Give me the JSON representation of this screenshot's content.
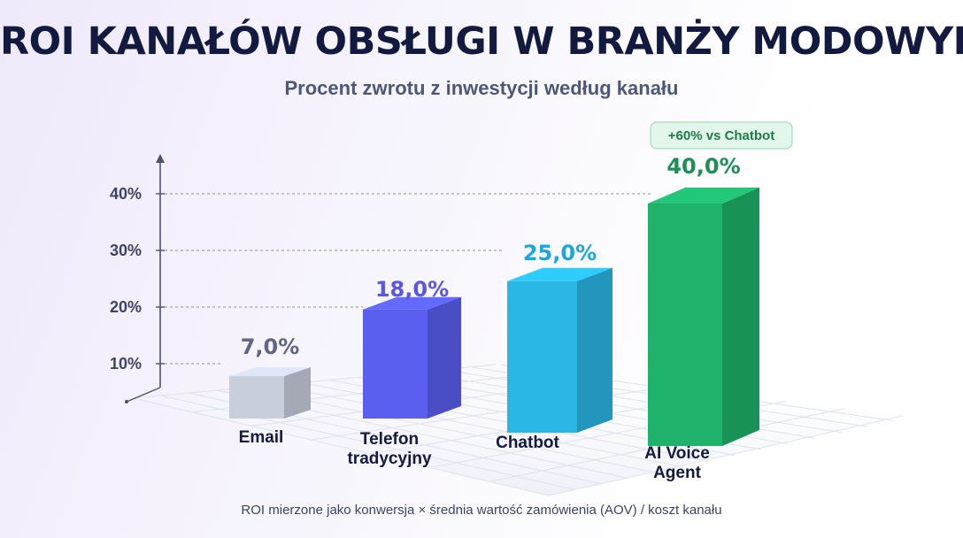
{
  "title": "ROI KANAŁÓW OBSŁUGI W BRANŻY MODOWYM",
  "subtitle": "Procent zwrotu z inwestycji według kanału",
  "footnote": "ROI mierzone jako konwersja × średnia wartość zamówienia (AOV) / koszt kanału",
  "badge": "+60% vs Chatbot",
  "chart_data": {
    "type": "bar",
    "title": "ROI KANAŁÓW OBSŁUGI W BRANŻY MODOWYM",
    "subtitle": "Procent zwrotu z inwestycji według kanału",
    "categories": [
      "Email",
      "Telefon\ntradycyjny",
      "Chatbot",
      "AI Voice\nAgent"
    ],
    "values": [
      7.0,
      18.0,
      25.0,
      40.0
    ],
    "value_labels": [
      "7,0%",
      "18,0%",
      "25,0%",
      "40,0%"
    ],
    "yticks": [
      10,
      20,
      30,
      40
    ],
    "ytick_labels": [
      "10%",
      "20%",
      "30%",
      "40%"
    ],
    "ylim": [
      0,
      45
    ],
    "grid": true,
    "xlabel": "",
    "ylabel": "",
    "annotation": "+60% vs Chatbot",
    "colors": {
      "Email": "#c9cedd",
      "Telefon tradycyjny": "#5a5ff0",
      "Chatbot": "#2ab7e6",
      "AI Voice Agent": "#1fb26b",
      "Email_label": "#5e6684",
      "Telefon tradycyjny_label": "#5a55e8",
      "Chatbot_label": "#1ba8d8",
      "AI Voice Agent_label": "#1c8f55"
    }
  }
}
